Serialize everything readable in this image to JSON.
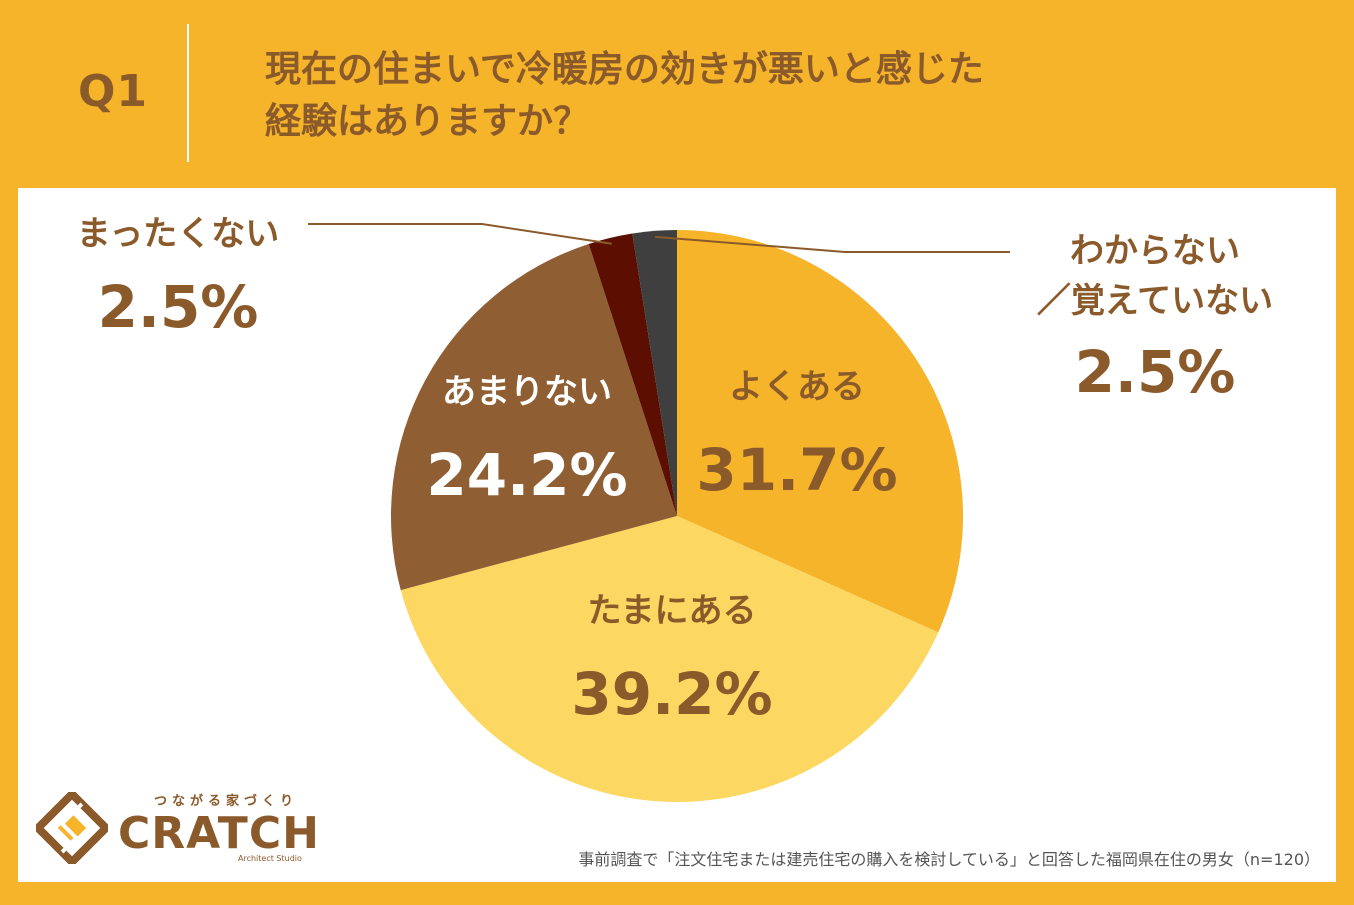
{
  "header": {
    "question_label": "Q1",
    "title_line1": "現在の住まいで冷暖房の効きが悪いと感じた",
    "title_line2": "経験はありますか？"
  },
  "chart_data": {
    "type": "pie",
    "slices": [
      {
        "label": "よくある",
        "value": 31.7,
        "value_label": "31.7%",
        "color": "#F5B42A",
        "text_color": "#8B5A2B",
        "label_placement": "inside"
      },
      {
        "label": "たまにある",
        "value": 39.2,
        "value_label": "39.2%",
        "color": "#FCD862",
        "text_color": "#8B5A2B",
        "label_placement": "inside"
      },
      {
        "label": "あまりない",
        "value": 24.2,
        "value_label": "24.2%",
        "color": "#8F5E33",
        "text_color": "#FFFFFF",
        "label_placement": "inside"
      },
      {
        "label": "まったくない",
        "value": 2.5,
        "value_label": "2.5%",
        "color": "#5C0F00",
        "text_color": "#8B5A2B",
        "label_placement": "outside-left"
      },
      {
        "label": "わからない／覚えていない",
        "label_lines": [
          "わからない",
          "／覚えていない"
        ],
        "value": 2.5,
        "value_label": "2.5%",
        "color": "#3F3F3F",
        "text_color": "#8B5A2B",
        "label_placement": "outside-right"
      }
    ],
    "start_angle": "12 o'clock",
    "direction": "clockwise"
  },
  "brand": {
    "tagline": "つながる家づくり",
    "name": "CRATCH",
    "sub": "Architect Studio",
    "color": "#8B5A2B"
  },
  "footnote": "事前調査で「注文住宅または建売住宅の購入を検討している」と回答した福岡県在住の男女（n=120）"
}
